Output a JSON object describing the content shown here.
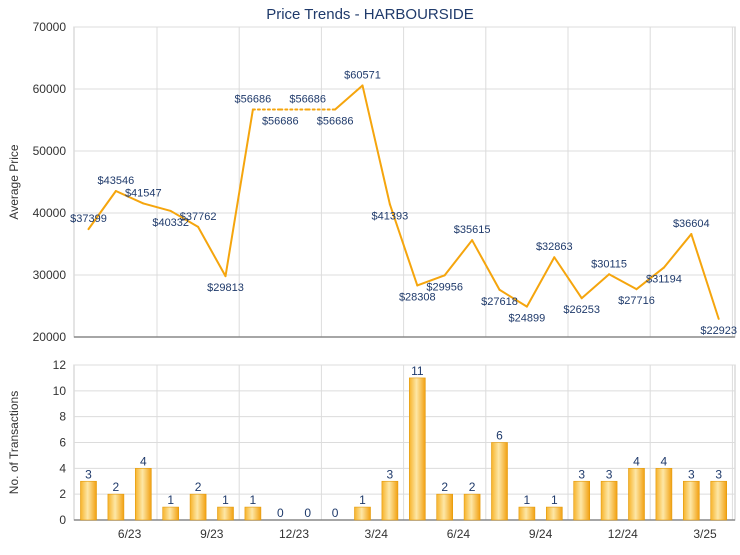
{
  "chart_data": [
    {
      "type": "line",
      "title": "Price Trends - HARBOURSIDE",
      "ylabel": "Average Price",
      "ylim": [
        20000,
        70000
      ],
      "yticks": [
        20000,
        30000,
        40000,
        50000,
        60000,
        70000
      ],
      "x_tick_labels": [
        "6/23",
        "9/23",
        "12/23",
        "3/24",
        "6/24",
        "9/24",
        "12/24",
        "3/25"
      ],
      "color": "#f5a50d",
      "points": [
        {
          "label": "$37399",
          "value": 37399
        },
        {
          "label": "$43546",
          "value": 43546
        },
        {
          "label": "$41547",
          "value": 41547
        },
        {
          "label": "$40332",
          "value": 40332
        },
        {
          "label": "$37762",
          "value": 37762
        },
        {
          "label": "$29813",
          "value": 29813
        },
        {
          "label": "$56686",
          "value": 56686
        },
        {
          "label": "$56686",
          "value": 56686
        },
        {
          "label": "$56686",
          "value": 56686
        },
        {
          "label": "$56686",
          "value": 56686
        },
        {
          "label": "$60571",
          "value": 60571
        },
        {
          "label": "$41393",
          "value": 41393
        },
        {
          "label": "$28308",
          "value": 28308
        },
        {
          "label": "$29956",
          "value": 29956
        },
        {
          "label": "$35615",
          "value": 35615
        },
        {
          "label": "$27618",
          "value": 27618
        },
        {
          "label": "$24899",
          "value": 24899
        },
        {
          "label": "$32863",
          "value": 32863
        },
        {
          "label": "$26253",
          "value": 26253
        },
        {
          "label": "$30115",
          "value": 30115
        },
        {
          "label": "$27716",
          "value": 27716
        },
        {
          "label": "$31194",
          "value": 31194
        },
        {
          "label": "$36604",
          "value": 36604
        },
        {
          "label": "$22923",
          "value": 22923
        }
      ]
    },
    {
      "type": "bar",
      "ylabel": "No. of Transactions",
      "ylim": [
        0,
        12
      ],
      "yticks": [
        0,
        2,
        4,
        6,
        8,
        10,
        12
      ],
      "x_tick_labels": [
        "6/23",
        "9/23",
        "12/23",
        "3/24",
        "6/24",
        "9/24",
        "12/24",
        "3/25"
      ],
      "color": "#f5a50d",
      "values": [
        3,
        2,
        4,
        1,
        2,
        1,
        1,
        0,
        0,
        0,
        1,
        3,
        11,
        2,
        2,
        6,
        1,
        1,
        3,
        3,
        4,
        4,
        3,
        3
      ]
    }
  ]
}
